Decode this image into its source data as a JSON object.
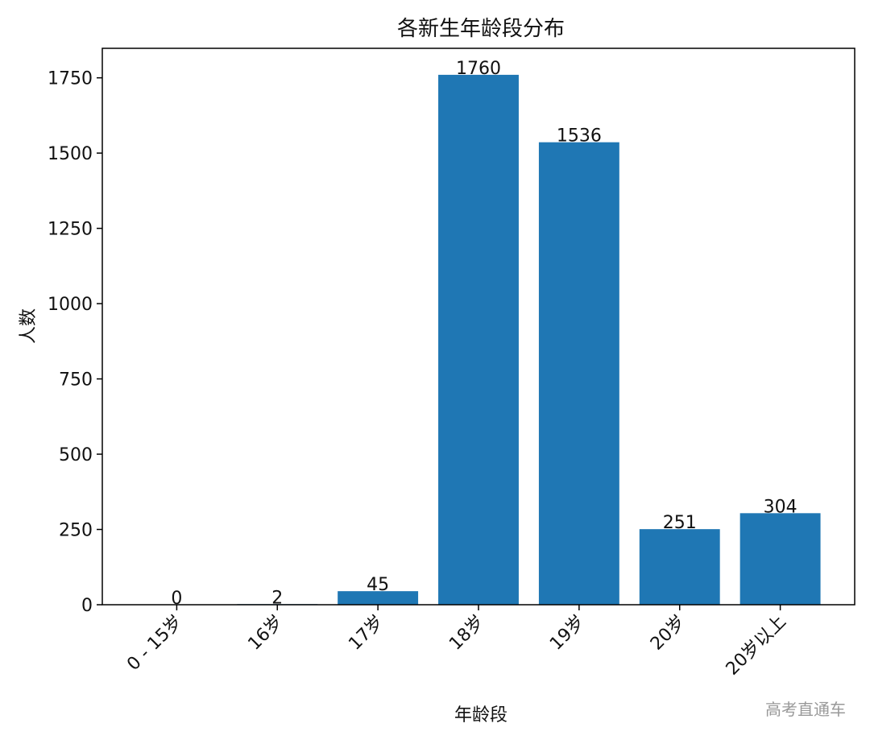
{
  "chart_data": {
    "type": "bar",
    "title": "各新生年龄段分布",
    "xlabel": "年龄段",
    "ylabel": "人数",
    "categories": [
      "0 - 15岁",
      "16岁",
      "17岁",
      "18岁",
      "19岁",
      "20岁",
      "20岁以上"
    ],
    "values": [
      0,
      2,
      45,
      1760,
      1536,
      251,
      304
    ],
    "color": "#1f77b4",
    "ylim": [
      0,
      1848
    ],
    "yticks": [
      0,
      250,
      500,
      750,
      1000,
      1250,
      1500,
      1750
    ],
    "watermark": "高考直通车"
  }
}
